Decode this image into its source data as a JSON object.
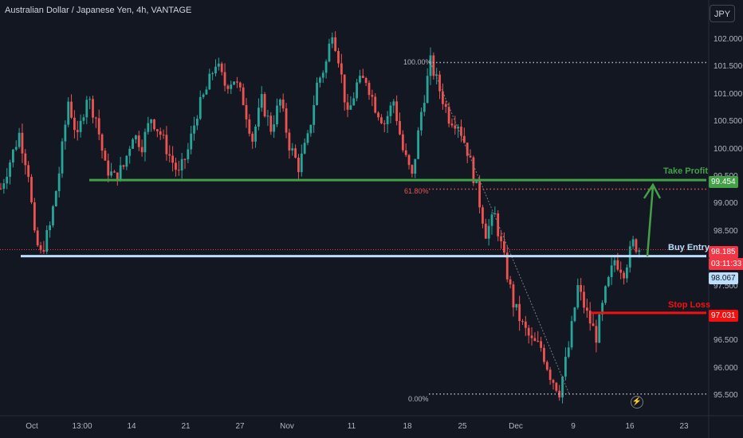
{
  "header": {
    "title": "Australian Dollar / Japanese Yen, 4h, VANTAGE",
    "currency_button": "JPY"
  },
  "annotations": {
    "take_profit": "Take Profit",
    "buy_entry": "Buy Entry",
    "stop_loss": "Stop Loss",
    "fib_top": "100.00%",
    "fib_mid": "61.80%",
    "fib_bottom": "0.00%"
  },
  "price_tags": {
    "take_profit": "99.454",
    "current_price": "98.185",
    "countdown": "03:11:33",
    "buy_entry": "98.067",
    "stop_loss": "97.031"
  },
  "colors": {
    "background": "#131722",
    "up": "#26a69a",
    "down": "#ef5350",
    "take_profit": "#43a047",
    "buy_entry": "#bbdefb",
    "stop_loss": "#f50f0f"
  },
  "chart_data": {
    "type": "candlestick",
    "title": "Australian Dollar / Japanese Yen, 4h, VANTAGE",
    "ylim": [
      95.3,
      102.5
    ],
    "y_ticks": [
      "102.000",
      "101.500",
      "101.000",
      "100.500",
      "100.000",
      "99.500",
      "99.000",
      "98.500",
      "98.000",
      "97.500",
      "97.000",
      "96.500",
      "96.000",
      "95.500"
    ],
    "x_ticks": [
      "Oct",
      "13:00",
      "14",
      "21",
      "27",
      "Nov",
      "11",
      "18",
      "25",
      "Dec",
      "9",
      "16",
      "23"
    ],
    "levels": {
      "take_profit": 99.454,
      "buy_entry": 98.067,
      "stop_loss": 97.031,
      "current": 98.185
    },
    "fibonacci": {
      "high": 101.6,
      "level_61_8": 99.29,
      "low": 95.55
    },
    "price_path": [
      [
        0,
        99.3
      ],
      [
        3,
        99.8
      ],
      [
        6,
        100.3
      ],
      [
        9,
        99.6
      ],
      [
        11,
        98.4
      ],
      [
        13,
        98.1
      ],
      [
        16,
        98.6
      ],
      [
        19,
        99.6
      ],
      [
        22,
        100.9
      ],
      [
        25,
        100.2
      ],
      [
        28,
        101.0
      ],
      [
        31,
        100.6
      ],
      [
        34,
        99.7
      ],
      [
        37,
        99.5
      ],
      [
        40,
        99.7
      ],
      [
        43,
        100.3
      ],
      [
        46,
        100.1
      ],
      [
        49,
        100.6
      ],
      [
        52,
        100.3
      ],
      [
        55,
        99.9
      ],
      [
        58,
        99.55
      ],
      [
        61,
        100.0
      ],
      [
        64,
        100.7
      ],
      [
        67,
        101.1
      ],
      [
        70,
        101.6
      ],
      [
        73,
        101.2
      ],
      [
        76,
        101.3
      ],
      [
        79,
        100.9
      ],
      [
        82,
        100.2
      ],
      [
        85,
        100.9
      ],
      [
        88,
        100.4
      ],
      [
        91,
        100.9
      ],
      [
        94,
        100.1
      ],
      [
        97,
        99.7
      ],
      [
        100,
        100.2
      ],
      [
        103,
        101.2
      ],
      [
        106,
        101.6
      ],
      [
        108,
        102.2
      ],
      [
        110,
        101.7
      ],
      [
        113,
        100.6
      ],
      [
        116,
        101.2
      ],
      [
        119,
        101.3
      ],
      [
        122,
        100.8
      ],
      [
        125,
        100.5
      ],
      [
        128,
        100.9
      ],
      [
        131,
        100.0
      ],
      [
        134,
        99.5
      ],
      [
        137,
        100.7
      ],
      [
        140,
        101.6
      ],
      [
        143,
        101.1
      ],
      [
        146,
        100.6
      ],
      [
        149,
        100.5
      ],
      [
        152,
        100.0
      ],
      [
        155,
        99.3
      ],
      [
        158,
        98.5
      ],
      [
        161,
        98.8
      ],
      [
        164,
        98.0
      ],
      [
        167,
        97.2
      ],
      [
        170,
        96.8
      ],
      [
        173,
        96.5
      ],
      [
        176,
        96.4
      ],
      [
        179,
        95.9
      ],
      [
        182,
        95.6
      ],
      [
        185,
        96.4
      ],
      [
        188,
        97.5
      ],
      [
        191,
        97.0
      ],
      [
        194,
        96.6
      ],
      [
        197,
        97.4
      ],
      [
        200,
        98.0
      ],
      [
        203,
        97.8
      ],
      [
        206,
        98.3
      ],
      [
        208,
        98.2
      ]
    ]
  }
}
